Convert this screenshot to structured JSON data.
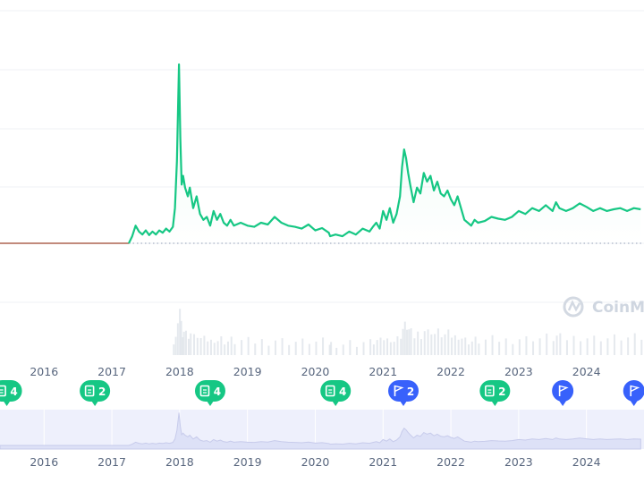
{
  "watermark": {
    "label": "CoinMa",
    "icon": "coinmarketcap-logo-icon"
  },
  "colors": {
    "line_up": "#16c784",
    "line_pre": "#c28a7c",
    "baseline": "#a6b0c3",
    "grid": "#eff2f5",
    "volume": "#dfe3ea",
    "navigator_bg": "#eef0fc",
    "navigator_line": "#c7cbeb",
    "event_green": "#16c784",
    "event_blue": "#3861fb",
    "tick_text": "#58667e"
  },
  "chart_data": {
    "type": "line",
    "title": "",
    "xlabel": "",
    "ylabel": "",
    "x_ticks": [
      "2016",
      "2017",
      "2018",
      "2019",
      "2020",
      "2021",
      "2022",
      "2023",
      "2024"
    ],
    "xlim": [
      2015.35,
      2024.8
    ],
    "ylim": [
      -1,
      3.2
    ],
    "baseline_value": 0,
    "grid": true,
    "series": [
      {
        "values_note_unused": "",
        "x": [
          2015.35,
          2016.0,
          2016.5,
          2017.0,
          2017.25,
          2017.3,
          2017.35,
          2017.4,
          2017.45,
          2017.5,
          2017.55,
          2017.6,
          2017.65,
          2017.7,
          2017.75,
          2017.8,
          2017.85,
          2017.9,
          2017.93,
          2017.96,
          2017.99,
          2018.01,
          2018.03,
          2018.05,
          2018.08,
          2018.12,
          2018.15,
          2018.2,
          2018.25,
          2018.3,
          2018.35,
          2018.4,
          2018.45,
          2018.5,
          2018.55,
          2018.6,
          2018.65,
          2018.7,
          2018.75,
          2018.8,
          2018.9,
          2019.0,
          2019.1,
          2019.2,
          2019.3,
          2019.4,
          2019.5,
          2019.6,
          2019.7,
          2019.8,
          2019.9,
          2020.0,
          2020.1,
          2020.2,
          2020.22,
          2020.3,
          2020.4,
          2020.5,
          2020.6,
          2020.7,
          2020.8,
          2020.85,
          2020.9,
          2020.95,
          2021.0,
          2021.05,
          2021.1,
          2021.15,
          2021.2,
          2021.25,
          2021.28,
          2021.31,
          2021.34,
          2021.37,
          2021.4,
          2021.45,
          2021.5,
          2021.55,
          2021.6,
          2021.65,
          2021.7,
          2021.75,
          2021.8,
          2021.85,
          2021.9,
          2021.95,
          2022.0,
          2022.05,
          2022.1,
          2022.15,
          2022.2,
          2022.25,
          2022.3,
          2022.35,
          2022.4,
          2022.5,
          2022.6,
          2022.7,
          2022.8,
          2022.9,
          2023.0,
          2023.1,
          2023.2,
          2023.3,
          2023.4,
          2023.5,
          2023.55,
          2023.6,
          2023.7,
          2023.8,
          2023.9,
          2024.0,
          2024.1,
          2024.2,
          2024.3,
          2024.4,
          2024.5,
          2024.6,
          2024.7,
          2024.8
        ],
        "values": [
          0,
          0,
          0,
          0,
          0,
          0.12,
          0.3,
          0.2,
          0.15,
          0.22,
          0.14,
          0.2,
          0.15,
          0.22,
          0.18,
          0.25,
          0.2,
          0.28,
          0.6,
          1.4,
          3.05,
          1.8,
          1.0,
          1.15,
          0.95,
          0.8,
          0.95,
          0.6,
          0.8,
          0.5,
          0.4,
          0.45,
          0.3,
          0.55,
          0.4,
          0.5,
          0.35,
          0.3,
          0.4,
          0.3,
          0.35,
          0.3,
          0.28,
          0.35,
          0.32,
          0.45,
          0.35,
          0.3,
          0.28,
          0.25,
          0.32,
          0.22,
          0.26,
          0.18,
          0.12,
          0.15,
          0.12,
          0.2,
          0.15,
          0.25,
          0.2,
          0.28,
          0.35,
          0.25,
          0.55,
          0.4,
          0.6,
          0.35,
          0.5,
          0.8,
          1.3,
          1.6,
          1.45,
          1.2,
          1.0,
          0.7,
          0.95,
          0.85,
          1.2,
          1.05,
          1.15,
          0.9,
          1.05,
          0.85,
          0.8,
          0.9,
          0.75,
          0.65,
          0.8,
          0.6,
          0.4,
          0.35,
          0.3,
          0.4,
          0.35,
          0.38,
          0.45,
          0.42,
          0.4,
          0.45,
          0.55,
          0.5,
          0.6,
          0.55,
          0.65,
          0.55,
          0.7,
          0.6,
          0.55,
          0.6,
          0.68,
          0.62,
          0.55,
          0.6,
          0.55,
          0.58,
          0.6,
          0.55,
          0.6,
          0.58
        ],
        "pre_listing_until": 2017.25
      }
    ],
    "events": [
      {
        "kind": "doc",
        "label": "4",
        "x": 2015.45,
        "color": "green"
      },
      {
        "kind": "doc",
        "label": "2",
        "x": 2016.75,
        "color": "green"
      },
      {
        "kind": "doc",
        "label": "4",
        "x": 2018.45,
        "color": "green"
      },
      {
        "kind": "doc",
        "label": "4",
        "x": 2020.3,
        "color": "green"
      },
      {
        "kind": "flag",
        "label": "2",
        "x": 2021.3,
        "color": "blue"
      },
      {
        "kind": "doc",
        "label": "2",
        "x": 2022.65,
        "color": "green"
      },
      {
        "kind": "flag",
        "label": "",
        "x": 2023.65,
        "color": "blue"
      },
      {
        "kind": "flag",
        "label": "",
        "x": 2024.7,
        "color": "blue"
      }
    ],
    "navigator_ticks": [
      "2016",
      "2017",
      "2018",
      "2019",
      "2020",
      "2021",
      "2022",
      "2023",
      "2024"
    ]
  }
}
